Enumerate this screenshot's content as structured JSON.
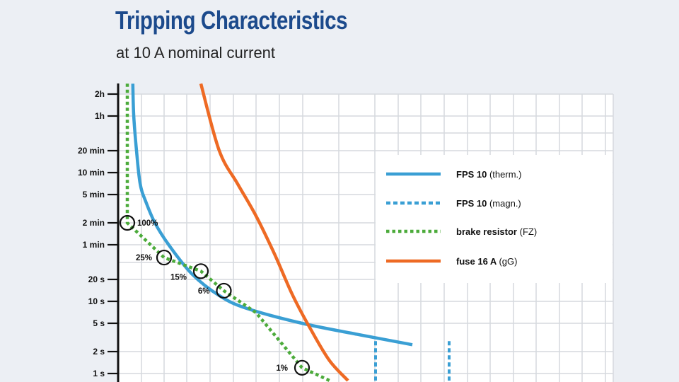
{
  "title": "Tripping Characteristics",
  "subtitle": "at 10 A nominal current",
  "colors": {
    "background": "#eceff4",
    "title": "#1c4a8c",
    "fps_blue": "#3a9fd4",
    "brake_green": "#4cab3b",
    "fuse_orange": "#ee6a24",
    "grid": "#d6d9de",
    "axis": "#111111"
  },
  "chart_data": {
    "type": "line",
    "title": "Tripping Characteristics",
    "subtitle": "at 10 A nominal current",
    "y_scale": "log",
    "grid": true,
    "legend_position": "top-right",
    "y_tick_labels": [
      "2h",
      "1h",
      "20 min",
      "10 min",
      "5 min",
      "2 min",
      "1 min",
      "20 s",
      "10 s",
      "5 s",
      "2 s",
      "1 s"
    ],
    "series": [
      {
        "name": "FPS 10",
        "note": "(therm.)",
        "style": "solid",
        "color": "#3a9fd4",
        "points": [
          [
            16,
            10000
          ],
          [
            17,
            3600
          ],
          [
            20,
            1200
          ],
          [
            24,
            420
          ],
          [
            30,
            240
          ],
          [
            40,
            120
          ],
          [
            55,
            60
          ],
          [
            80,
            24
          ],
          [
            110,
            12
          ],
          [
            140,
            8
          ],
          [
            200,
            5
          ],
          [
            260,
            3.5
          ],
          [
            320,
            2.5
          ]
        ]
      },
      {
        "name": "FPS 10",
        "note": "(magn.)",
        "style": "dashed",
        "color": "#3a9fd4",
        "segments": [
          [
            [
              280,
              2.8
            ],
            [
              280,
              0.8
            ]
          ],
          [
            [
              360,
              2.8
            ],
            [
              360,
              0.8
            ]
          ]
        ]
      },
      {
        "name": "brake resistor",
        "note": "(FZ)",
        "style": "dotted",
        "color": "#4cab3b",
        "points": [
          [
            10,
            10000
          ],
          [
            10,
            120
          ],
          [
            50,
            40
          ],
          [
            90,
            26
          ],
          [
            115,
            14
          ],
          [
            150,
            7
          ],
          [
            200,
            1.2
          ],
          [
            230,
            0.8
          ]
        ],
        "markers": [
          {
            "x": 10,
            "y": 120,
            "label": "100%"
          },
          {
            "x": 50,
            "y": 40,
            "label": "25%"
          },
          {
            "x": 90,
            "y": 26,
            "label": "15%"
          },
          {
            "x": 115,
            "y": 14,
            "label": "6%"
          },
          {
            "x": 200,
            "y": 1.2,
            "label": "1%"
          }
        ]
      },
      {
        "name": "fuse 16 A",
        "note": "(gG)",
        "style": "solid",
        "color": "#ee6a24",
        "points": [
          [
            90,
            10000
          ],
          [
            110,
            1200
          ],
          [
            130,
            420
          ],
          [
            150,
            150
          ],
          [
            170,
            45
          ],
          [
            190,
            12
          ],
          [
            210,
            4
          ],
          [
            230,
            1.5
          ],
          [
            250,
            0.8
          ]
        ]
      }
    ]
  },
  "legend": [
    {
      "name": "FPS 10",
      "note": "(therm.)"
    },
    {
      "name": "FPS 10",
      "note": "(magn.)"
    },
    {
      "name": "brake resistor",
      "note": "(FZ)"
    },
    {
      "name": "fuse 16 A",
      "note": "(gG)"
    }
  ]
}
